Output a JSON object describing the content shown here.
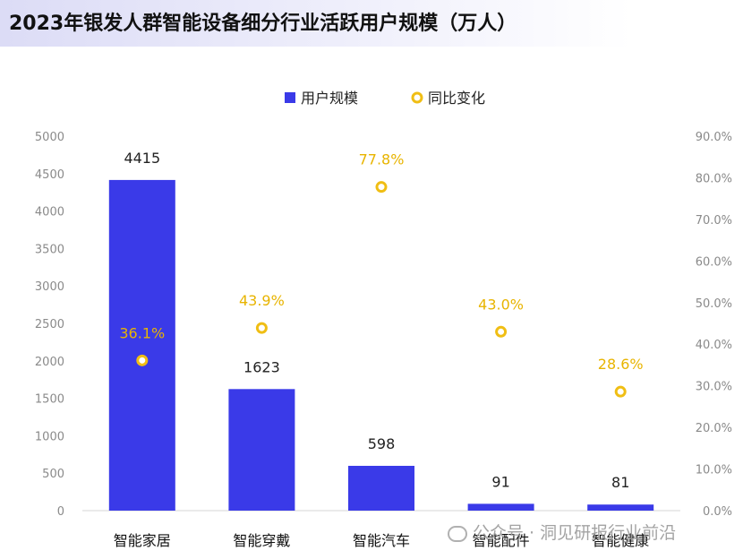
{
  "title": "2023年银发人群智能设备细分行业活跃用户规模（万人）",
  "watermark": "公众号 · 洞见研报行业前沿",
  "colors": {
    "bar": "#3a3ae8",
    "marker": "#f0be14",
    "pct_label": "#e8b400"
  },
  "chart_data": {
    "type": "bar",
    "title": "2023年银发人群智能设备细分行业活跃用户规模（万人）",
    "categories": [
      "智能家居",
      "智能穿戴",
      "智能汽车",
      "智能配件",
      "智能健康"
    ],
    "series": [
      {
        "name": "用户规模",
        "type": "bar",
        "axis": "left",
        "values": [
          4415,
          1623,
          598,
          91,
          81
        ]
      },
      {
        "name": "同比变化",
        "type": "scatter",
        "axis": "right",
        "values": [
          36.1,
          43.9,
          77.8,
          43.0,
          28.6
        ],
        "labels": [
          "36.1%",
          "43.9%",
          "77.8%",
          "43.0%",
          "28.6%"
        ]
      }
    ],
    "ylim": [
      0,
      5000
    ],
    "y_ticks": [
      "0",
      "500",
      "1000",
      "1500",
      "2000",
      "2500",
      "3000",
      "3500",
      "4000",
      "4500",
      "5000"
    ],
    "y2lim": [
      0,
      90
    ],
    "y2_ticks": [
      "0.0%",
      "10.0%",
      "20.0%",
      "30.0%",
      "40.0%",
      "50.0%",
      "60.0%",
      "70.0%",
      "80.0%",
      "90.0%"
    ],
    "legend": {
      "position": "top-center",
      "items": [
        "用户规模",
        "同比变化"
      ]
    },
    "grid": false
  }
}
